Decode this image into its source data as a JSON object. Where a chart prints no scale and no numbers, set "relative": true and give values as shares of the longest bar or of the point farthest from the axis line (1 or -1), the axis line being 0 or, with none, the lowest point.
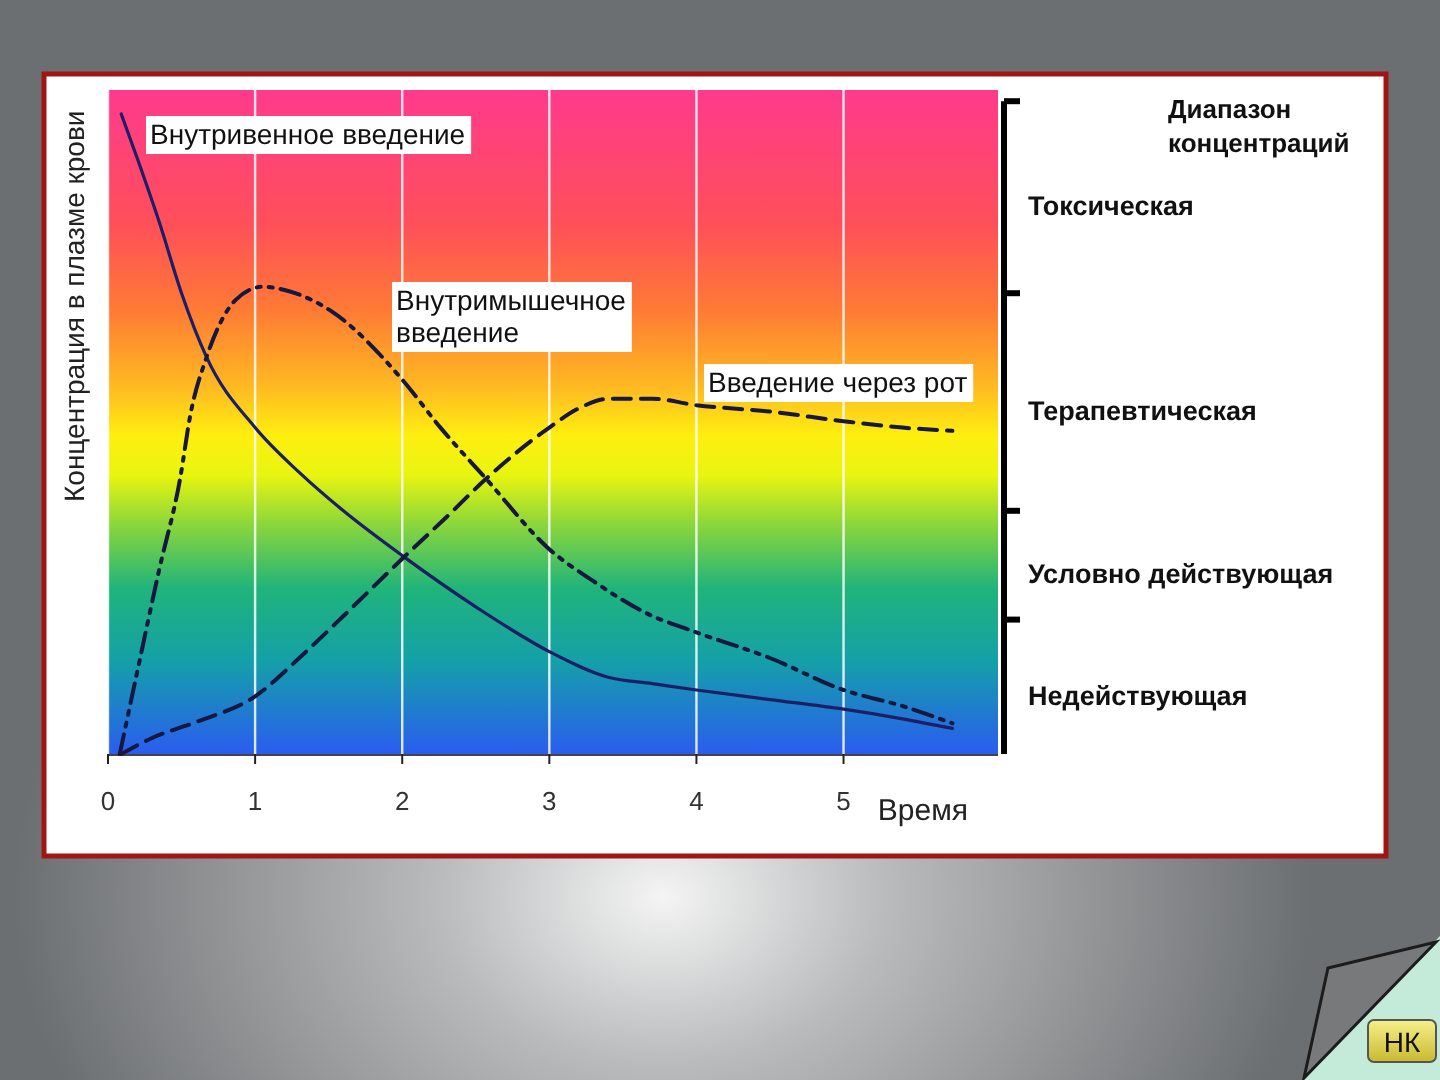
{
  "chart_data": {
    "type": "line",
    "relative": true,
    "ylabel": "Концентрация в плазме крови",
    "xlabel": "Время",
    "xlim": [
      0,
      6.05
    ],
    "xticks": [
      0,
      1,
      2,
      3,
      4,
      5
    ],
    "grid": "x",
    "series": [
      {
        "name": "Внутривенное введение",
        "color": "#1c1f66",
        "line_style": "solid",
        "x": [
          0.09,
          0.2,
          0.35,
          0.5,
          0.67,
          1.0,
          1.3,
          1.6,
          2.0,
          2.5,
          3.0,
          3.4,
          3.7,
          4.0,
          4.5,
          5.0,
          5.4,
          5.74
        ],
        "values": [
          1.0,
          0.93,
          0.83,
          0.72,
          0.62,
          0.51,
          0.44,
          0.38,
          0.31,
          0.23,
          0.16,
          0.12,
          0.11,
          0.1,
          0.085,
          0.07,
          0.055,
          0.04
        ]
      },
      {
        "name": "Внутримышечное введение",
        "color": "#16183f",
        "line_style": "dashdot",
        "x": [
          0.08,
          0.2,
          0.35,
          0.49,
          0.56,
          0.67,
          0.87,
          1.05,
          1.2,
          1.53,
          2.0,
          2.26,
          2.57,
          3.0,
          3.3,
          3.66,
          4.0,
          4.5,
          5.0,
          5.4,
          5.74
        ],
        "values": [
          0.0,
          0.13,
          0.29,
          0.43,
          0.53,
          0.62,
          0.71,
          0.73,
          0.725,
          0.69,
          0.585,
          0.51,
          0.43,
          0.32,
          0.27,
          0.22,
          0.19,
          0.15,
          0.1,
          0.075,
          0.048
        ]
      },
      {
        "name": "Введение через рот",
        "color": "#16183f",
        "line_style": "dashed",
        "x": [
          0.09,
          0.3,
          0.6,
          1.0,
          1.3,
          1.62,
          2.0,
          2.3,
          2.57,
          3.0,
          3.2,
          3.4,
          3.7,
          4.0,
          4.5,
          5.0,
          5.4,
          5.74
        ],
        "values": [
          0.0,
          0.025,
          0.05,
          0.09,
          0.15,
          0.22,
          0.305,
          0.37,
          0.43,
          0.51,
          0.54,
          0.555,
          0.555,
          0.545,
          0.535,
          0.52,
          0.51,
          0.505
        ]
      }
    ],
    "bands": [
      {
        "axis": "y",
        "from": 0.72,
        "to": 1.02,
        "label": "Токсическая"
      },
      {
        "axis": "y",
        "from": 0.38,
        "to": 0.72,
        "label": "Терапевтическая"
      },
      {
        "axis": "y",
        "from": 0.21,
        "to": 0.38,
        "label": "Условно действующая"
      },
      {
        "axis": "y",
        "from": 0,
        "to": 0.21,
        "label": "Недействующая"
      }
    ],
    "annotations": [
      "Диапазон концентраций",
      "НК"
    ]
  }
}
